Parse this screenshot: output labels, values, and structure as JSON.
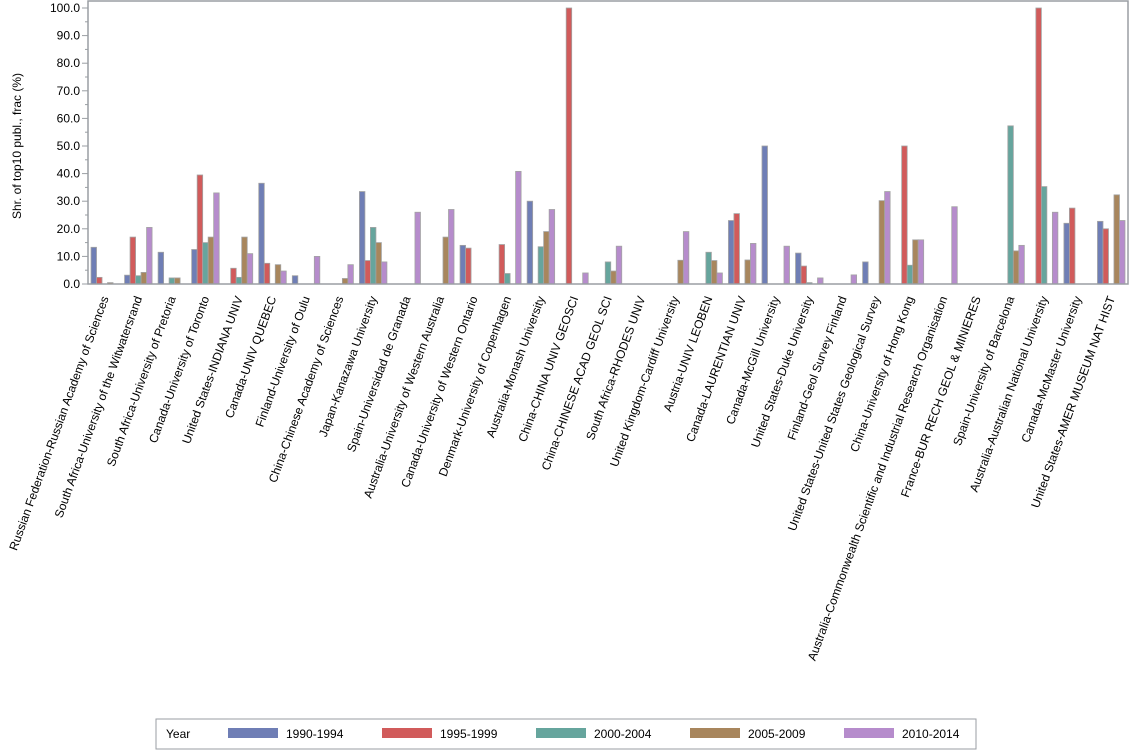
{
  "chart_data": {
    "type": "bar",
    "title": "",
    "xlabel": "",
    "ylabel": "Shr. of top10 publ., frac (%)",
    "ylim": [
      0,
      100
    ],
    "yticks": [
      "0.0",
      "10.0",
      "20.0",
      "30.0",
      "40.0",
      "50.0",
      "60.0",
      "70.0",
      "80.0",
      "90.0",
      "100.0"
    ],
    "grid": false,
    "legend": {
      "title": "Year",
      "placement": "bottom"
    },
    "categories": [
      "Russian Federation-Russian Academy of Sciences",
      "South Africa-University of the Witwatersrand",
      "South Africa-University of Pretoria",
      "Canada-University of Toronto",
      "United States-INDIANA UNIV",
      "Canada-UNIV QUEBEC",
      "Finland-University of Oulu",
      "China-Chinese Academy of Sciences",
      "Japan-Kanazawa University",
      "Spain-Universidad de Granada",
      "Australia-University of Western Australia",
      "Canada-University of Western Ontario",
      "Denmark-University of Copenhagen",
      "Australia-Monash University",
      "China-CHINA UNIV GEOSCI",
      "China-CHINESE ACAD GEOL SCI",
      "South Africa-RHODES UNIV",
      "United Kingdom-Cardiff University",
      "Austria-UNIV LEOBEN",
      "Canada-LAURENTIAN UNIV",
      "Canada-McGill University",
      "United States-Duke University",
      "Finland-Geol Survey Finland",
      "United States-United States Geological Survey",
      "China-University of Hong Kong",
      "Australia-Commonwealth Scientific and Industrial Research Organisation",
      "France-BUR RECH GEOL & MINIERES",
      "Spain-University of Barcelona",
      "Australia-Australian National University",
      "Canada-McMaster University",
      "United States-AMER MUSEUM NAT HIST"
    ],
    "series": [
      {
        "name": "1990-1994",
        "color": "#6f7eb5",
        "values": [
          13.3,
          3.2,
          11.5,
          12.5,
          null,
          36.5,
          3.0,
          null,
          33.5,
          null,
          null,
          14.0,
          null,
          30.0,
          null,
          null,
          null,
          null,
          null,
          23.0,
          50.0,
          11.2,
          null,
          8.0,
          null,
          null,
          null,
          null,
          null,
          22.0,
          22.7
        ]
      },
      {
        "name": "1995-1999",
        "color": "#d15b5b",
        "values": [
          2.4,
          17.0,
          null,
          39.5,
          5.7,
          7.5,
          null,
          null,
          8.5,
          null,
          null,
          13.0,
          14.3,
          null,
          100.0,
          null,
          null,
          null,
          null,
          25.5,
          null,
          6.5,
          null,
          null,
          50.0,
          null,
          null,
          null,
          100.0,
          27.5,
          20.0
        ]
      },
      {
        "name": "2000-2004",
        "color": "#66a59d",
        "values": [
          null,
          3.0,
          2.2,
          15.0,
          2.4,
          null,
          null,
          null,
          20.5,
          null,
          null,
          null,
          3.8,
          13.5,
          null,
          8.0,
          null,
          null,
          11.5,
          null,
          null,
          0.5,
          null,
          null,
          6.8,
          null,
          null,
          57.3,
          35.3,
          null,
          null
        ]
      },
      {
        "name": "2005-2009",
        "color": "#a8865d",
        "values": [
          0.5,
          4.2,
          2.2,
          17.0,
          17.0,
          7.0,
          null,
          2.0,
          15.0,
          null,
          17.0,
          null,
          null,
          19.0,
          null,
          4.7,
          null,
          8.6,
          8.5,
          8.7,
          null,
          null,
          null,
          30.2,
          16.0,
          null,
          null,
          12.0,
          null,
          null,
          32.3
        ]
      },
      {
        "name": "2010-2014",
        "color": "#b68ccc",
        "values": [
          null,
          20.5,
          null,
          33.0,
          11.0,
          4.7,
          10.0,
          7.0,
          8.0,
          26.0,
          27.0,
          null,
          40.8,
          27.0,
          4.0,
          13.7,
          null,
          19.0,
          4.0,
          14.7,
          13.7,
          2.2,
          3.3,
          33.5,
          16.0,
          28.0,
          null,
          14.0,
          26.0,
          null,
          23.0
        ]
      }
    ]
  }
}
